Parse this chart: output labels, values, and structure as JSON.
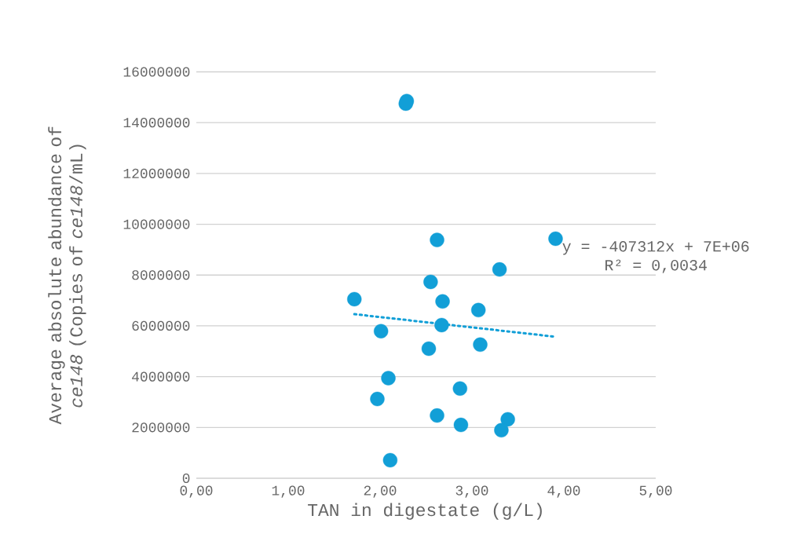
{
  "chart_data": {
    "type": "scatter",
    "xlabel": "TAN in digestate (g/L)",
    "ylabel": "Average absolute abundance of *ce148* (Copies of *ce148*/mL)",
    "xlim": [
      0,
      5
    ],
    "ylim": [
      0,
      16000000
    ],
    "xticks": [
      {
        "value": 0,
        "label": "0,00"
      },
      {
        "value": 1,
        "label": "1,00"
      },
      {
        "value": 2,
        "label": "2,00"
      },
      {
        "value": 3,
        "label": "3,00"
      },
      {
        "value": 4,
        "label": "4,00"
      },
      {
        "value": 5,
        "label": "5,00"
      }
    ],
    "yticks": [
      0,
      2000000,
      4000000,
      6000000,
      8000000,
      10000000,
      12000000,
      14000000,
      16000000
    ],
    "grid": "y",
    "series": [
      {
        "color": "#129fd7",
        "marker": "circle",
        "x": [
          1.72,
          2.01,
          2.09,
          1.97,
          2.11,
          2.29,
          2.28,
          2.62,
          3.91,
          3.3,
          2.55,
          2.68,
          3.07,
          2.67,
          2.53,
          3.09,
          2.87,
          2.62,
          2.88,
          3.39,
          3.32
        ],
        "values": [
          7050000,
          5790000,
          3940000,
          3120000,
          710000,
          14850000,
          14750000,
          9380000,
          9430000,
          8220000,
          7730000,
          6960000,
          6620000,
          6030000,
          5100000,
          5260000,
          3530000,
          2470000,
          2100000,
          2320000,
          1890000
        ]
      },
      {
        "type": "line",
        "color": "#129fd7",
        "line_style": "dotted",
        "marker": "none",
        "x": [
          1.72,
          3.91
        ],
        "values": [
          6460000,
          5570000
        ]
      }
    ],
    "annotations": [
      "y = -407312x + 7E+06",
      "R² = 0,0034"
    ]
  }
}
